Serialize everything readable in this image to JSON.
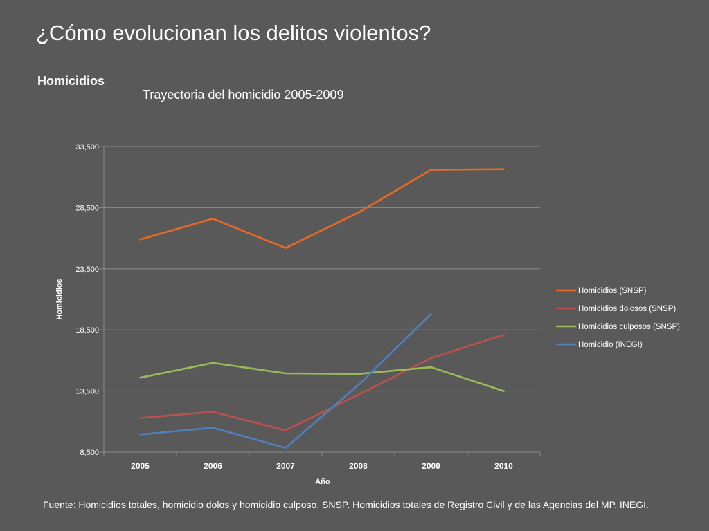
{
  "slide": {
    "title": "¿Cómo evolucionan los delitos violentos?",
    "section": "Homicidios",
    "footnote": "Fuente: Homicidios totales, homicidio dolos y homicidio culposo. SNSP.  Homicidios totales de Registro Civil y de las Agencias del MP. INEGI."
  },
  "chart_data": {
    "type": "line",
    "title": "Trayectoria del homicidio  2005-2009",
    "xlabel": "Año",
    "ylabel": "Homicidios",
    "categories": [
      "2005",
      "2006",
      "2007",
      "2008",
      "2009",
      "2010"
    ],
    "ylim": [
      8500,
      33500
    ],
    "yticks": [
      8500,
      13500,
      18500,
      23500,
      28500,
      33500
    ],
    "ytick_labels": [
      "8,500",
      "13,500",
      "18,500",
      "23,500",
      "28,500",
      "33,500"
    ],
    "grid": "horizontal",
    "legend_position": "right",
    "series": [
      {
        "name": "Homicidios (SNSP)",
        "color": "#ec6a1f",
        "values": [
          25900,
          27600,
          25200,
          28100,
          31600,
          31650
        ]
      },
      {
        "name": "Homicidios dolosos (SNSP)",
        "color": "#c0504d",
        "values": [
          11300,
          11800,
          10300,
          13200,
          16200,
          18100
        ]
      },
      {
        "name": "Homicidios culposos (SNSP)",
        "color": "#9bbb59",
        "values": [
          14600,
          15800,
          14950,
          14900,
          15450,
          13500
        ]
      },
      {
        "name": "Homicidio (INEGI)",
        "color": "#4f81bd",
        "values": [
          9950,
          10500,
          8850,
          14000,
          19800,
          null
        ]
      }
    ]
  }
}
